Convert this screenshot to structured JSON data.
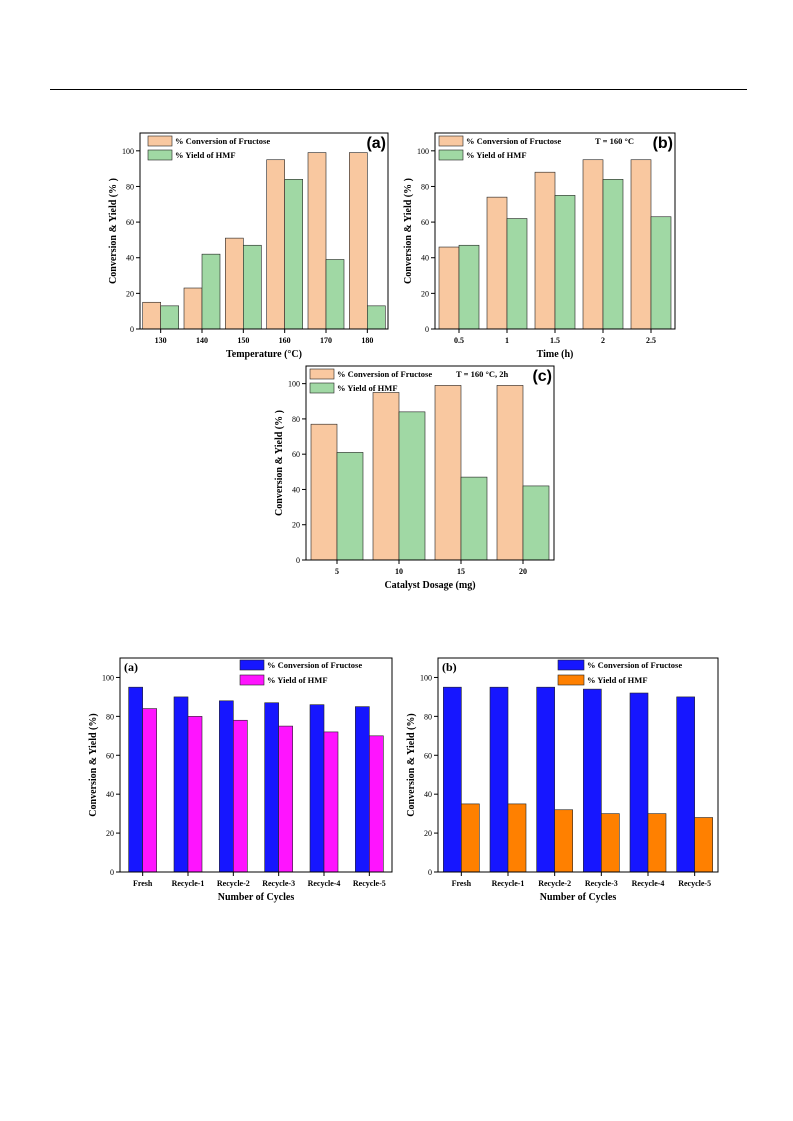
{
  "colors": {
    "fig1_conversion": "#F9C8A0",
    "fig1_yield": "#A0D8A4",
    "fig2_conversion": "#1616FF",
    "fig2a_yield": "#FF14FF",
    "fig2b_yield": "#FF8000"
  },
  "chart_data": [
    {
      "id": "temperature",
      "type": "bar",
      "panel_label": "(a)",
      "annotation": "",
      "xlabel": "Temperature (°C)",
      "ylabel": "Conversion & Yield (% )",
      "ylim": [
        0,
        110
      ],
      "yticks": [
        0,
        20,
        40,
        60,
        80,
        100
      ],
      "categories": [
        "130",
        "140",
        "150",
        "160",
        "170",
        "180"
      ],
      "legend_position": "top-left",
      "series": [
        {
          "name": "% Conversion of Fructose",
          "values": [
            15,
            23,
            51,
            95,
            99,
            99
          ]
        },
        {
          "name": "% Yield of HMF",
          "values": [
            13,
            42,
            47,
            84,
            39,
            13
          ]
        }
      ]
    },
    {
      "id": "time",
      "type": "bar",
      "panel_label": "(b)",
      "annotation": "T = 160 °C",
      "xlabel": "Time (h)",
      "ylabel": "Conversion & Yield (% )",
      "ylim": [
        0,
        110
      ],
      "yticks": [
        0,
        20,
        40,
        60,
        80,
        100
      ],
      "categories": [
        "0.5",
        "1",
        "1.5",
        "2",
        "2.5"
      ],
      "legend_position": "top-left",
      "series": [
        {
          "name": "% Conversion of Fructose",
          "values": [
            46,
            74,
            88,
            95,
            95
          ]
        },
        {
          "name": "% Yield of HMF",
          "values": [
            47,
            62,
            75,
            84,
            63
          ]
        }
      ]
    },
    {
      "id": "dosage",
      "type": "bar",
      "panel_label": "(c)",
      "annotation": "T = 160 °C, 2h",
      "xlabel": "Catalyst Dosage (mg)",
      "ylabel": "Conversion & Yield (% )",
      "ylim": [
        0,
        110
      ],
      "yticks": [
        0,
        20,
        40,
        60,
        80,
        100
      ],
      "categories": [
        "5",
        "10",
        "15",
        "20"
      ],
      "legend_position": "top-left",
      "series": [
        {
          "name": "% Conversion of Fructose",
          "values": [
            77,
            95,
            99,
            99
          ]
        },
        {
          "name": "% Yield of HMF",
          "values": [
            61,
            84,
            47,
            42
          ]
        }
      ]
    },
    {
      "id": "recycle-a",
      "type": "bar",
      "panel_label": "(a)",
      "annotation": "",
      "xlabel": "Number of Cycles",
      "ylabel": "Conversion & Yield (%)",
      "ylim": [
        0,
        110
      ],
      "yticks": [
        0,
        20,
        40,
        60,
        80,
        100
      ],
      "categories": [
        "Fresh",
        "Recycle-1",
        "Recycle-2",
        "Recycle-3",
        "Recycle-4",
        "Recycle-5"
      ],
      "legend_position": "top-right",
      "series": [
        {
          "name": "% Conversion of Fructose",
          "values": [
            95,
            90,
            88,
            87,
            86,
            85
          ]
        },
        {
          "name": "% Yield of HMF",
          "values": [
            84,
            80,
            78,
            75,
            72,
            70
          ]
        }
      ]
    },
    {
      "id": "recycle-b",
      "type": "bar",
      "panel_label": "(b)",
      "annotation": "",
      "xlabel": "Number of Cycles",
      "ylabel": "Conversion & Yield (%)",
      "ylim": [
        0,
        110
      ],
      "yticks": [
        0,
        20,
        40,
        60,
        80,
        100
      ],
      "categories": [
        "Fresh",
        "Recycle-1",
        "Recycle-2",
        "Recycle-3",
        "Recycle-4",
        "Recycle-5"
      ],
      "legend_position": "top-right",
      "series": [
        {
          "name": "% Conversion of Fructose",
          "values": [
            95,
            95,
            95,
            94,
            92,
            90
          ]
        },
        {
          "name": "% Yield of HMF",
          "values": [
            35,
            35,
            32,
            30,
            30,
            28
          ]
        }
      ]
    }
  ]
}
